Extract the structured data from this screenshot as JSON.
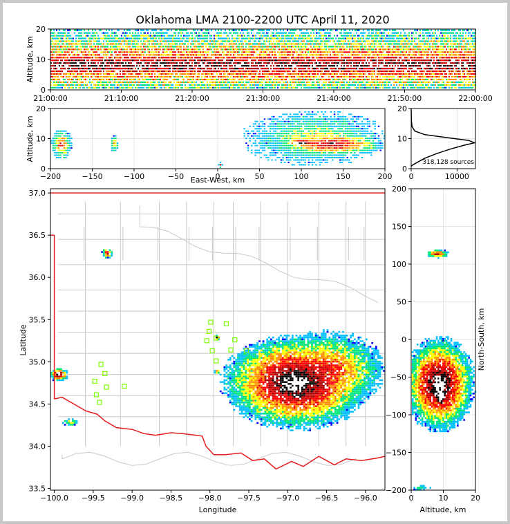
{
  "title": "Oklahoma LMA 2100-2200 UTC April 11, 2020",
  "colors": {
    "state_border": "#e41a1c",
    "county_lines": "#c8c8c8",
    "stations": "#7cfc00",
    "density_scale": [
      "#0000ff",
      "#00bfff",
      "#00e676",
      "#ffff00",
      "#ff8c00",
      "#ff0000",
      "#b00000",
      "#000000",
      "#ffffff"
    ]
  },
  "chart_data": [
    {
      "id": "time-height",
      "type": "heatmap",
      "ylabel": "Altitude, km",
      "ylim": [
        0,
        20
      ],
      "yticks": [
        "0",
        "10",
        "20"
      ],
      "xlim": [
        "21:00:00",
        "22:00:00"
      ],
      "xticks": [
        "21:00:00",
        "21:10:00",
        "21:20:00",
        "21:30:00",
        "21:40:00",
        "21:50:00",
        "22:00:00"
      ],
      "density_band_km": [
        5,
        12
      ],
      "core_altitude_km": 8
    },
    {
      "id": "ew-altitude",
      "type": "heatmap",
      "xlabel": "East-West, km",
      "ylabel": "Altitude, km",
      "xlim": [
        -200,
        200
      ],
      "ylim": [
        0,
        20
      ],
      "xticks": [
        "−200",
        "−150",
        "−100",
        "−50",
        "0",
        "50",
        "100",
        "150",
        "200"
      ],
      "yticks": [
        "0",
        "10",
        "20"
      ],
      "clusters": [
        {
          "x": [
            -200,
            -175
          ],
          "y": [
            3,
            13
          ],
          "level": 5
        },
        {
          "x": [
            -130,
            -120
          ],
          "y": [
            5,
            11
          ],
          "level": 4
        },
        {
          "x": [
            0,
            5
          ],
          "y": [
            0,
            2
          ],
          "level": 6
        },
        {
          "x": [
            30,
            200
          ],
          "y": [
            1,
            19
          ],
          "level": 3
        },
        {
          "x": [
            70,
            200
          ],
          "y": [
            4,
            12
          ],
          "level": 6
        },
        {
          "x": [
            80,
            120
          ],
          "y": [
            7,
            10
          ],
          "level": 8
        }
      ]
    },
    {
      "id": "altitude-histogram",
      "type": "line",
      "annotation": "318,128 sources",
      "xlim": [
        0,
        14000
      ],
      "ylim": [
        0,
        20
      ],
      "xticks": [
        "0",
        "10000"
      ],
      "yticks": [
        "0",
        "10",
        "20"
      ],
      "x": [
        0,
        300,
        1200,
        3000,
        5500,
        8500,
        11500,
        13800,
        12500,
        8000,
        3000,
        800,
        200,
        50,
        0
      ],
      "y": [
        0.8,
        1.2,
        2,
        3.5,
        5,
        6.5,
        7.8,
        8.6,
        9.4,
        10.3,
        11.3,
        12.5,
        14,
        16,
        20
      ]
    },
    {
      "id": "plan-view",
      "type": "heatmap",
      "xlabel": "Longitude",
      "ylabel": "Latitude",
      "xlim": [
        -100.05,
        -95.75
      ],
      "ylim": [
        33.48,
        37.05
      ],
      "xticks": [
        "−100.0",
        "−99.5",
        "−99.0",
        "−98.5",
        "−98.0",
        "−97.5",
        "−97.0",
        "−96.5",
        "−96.0"
      ],
      "yticks": [
        "33.5",
        "34.0",
        "34.5",
        "35.0",
        "35.5",
        "36.0",
        "36.5",
        "37.0"
      ],
      "stations": [
        [
          -97.99,
          35.47
        ],
        [
          -98.01,
          35.36
        ],
        [
          -98.04,
          35.25
        ],
        [
          -97.92,
          35.28
        ],
        [
          -97.97,
          35.13
        ],
        [
          -97.92,
          35.01
        ],
        [
          -97.79,
          35.45
        ],
        [
          -97.68,
          35.26
        ],
        [
          -97.73,
          35.14
        ],
        [
          -97.53,
          35.13
        ],
        [
          -99.4,
          34.97
        ],
        [
          -99.35,
          34.86
        ],
        [
          -99.48,
          34.77
        ],
        [
          -99.33,
          34.7
        ],
        [
          -99.46,
          34.61
        ],
        [
          -99.42,
          34.52
        ],
        [
          -99.1,
          34.71
        ]
      ]
    },
    {
      "id": "ns-altitude",
      "type": "heatmap",
      "xlabel": "Altitude, km",
      "ylabel": "North-South, km",
      "xlim": [
        0,
        20
      ],
      "ylim": [
        -200,
        200
      ],
      "xticks": [
        "0",
        "10",
        "20"
      ],
      "yticks": [
        "200",
        "150",
        "100",
        "50",
        "0",
        "−50",
        "−100",
        "−150",
        "−200"
      ]
    }
  ]
}
